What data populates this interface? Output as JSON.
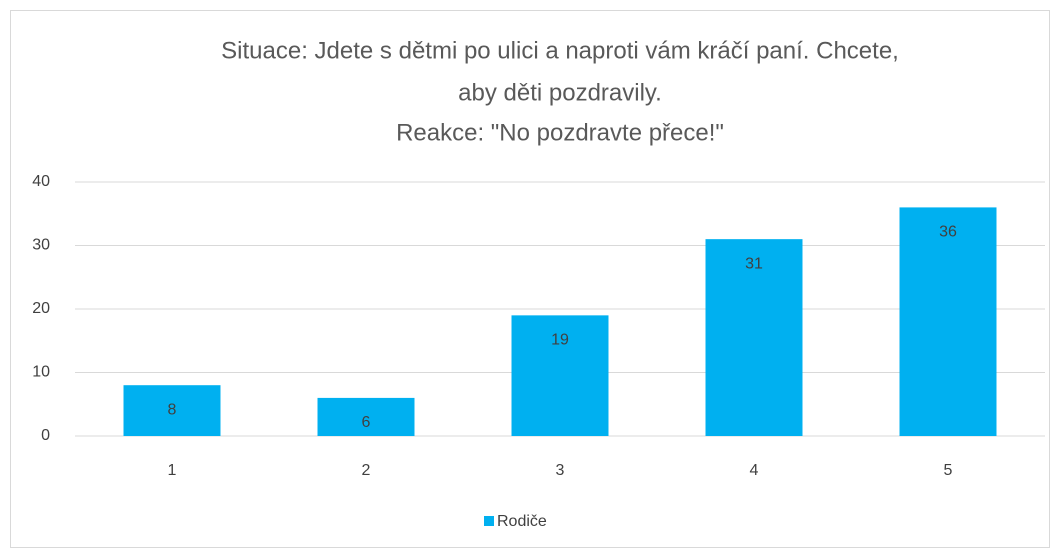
{
  "chart_data": {
    "type": "bar",
    "title": [
      "Situace: Jdete s dětmi po ulici a naproti vám kráčí paní. Chcete,",
      "aby děti pozdravily.",
      "Reakce: \"No pozdravte přece!\""
    ],
    "categories": [
      "1",
      "2",
      "3",
      "4",
      "5"
    ],
    "series": [
      {
        "name": "Rodiče",
        "color": "#00b0f0",
        "values": [
          8,
          6,
          19,
          31,
          36
        ]
      }
    ],
    "ylim": [
      0,
      40
    ],
    "yticks": [
      0,
      10,
      20,
      30,
      40
    ],
    "grid": true,
    "legend": "bottom"
  }
}
